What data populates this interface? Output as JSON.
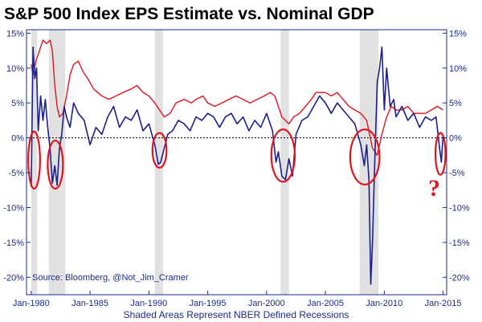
{
  "chart_data": {
    "type": "line",
    "title": "S&P 500 Index EPS Estimate vs. Nominal GDP",
    "xlabel": "Shaded Areas Represent NBER Defined Recessions",
    "source": "Source: Bloomberg, @Not_Jim_Cramer",
    "annotation": "?",
    "xlim": [
      1979.6,
      2015.3
    ],
    "ylim": [
      -22.5,
      15.5
    ],
    "x_ticks": [
      {
        "value": 1980,
        "label": "Jan-1980"
      },
      {
        "value": 1985,
        "label": "Jan-1985"
      },
      {
        "value": 1990,
        "label": "Jan-1990"
      },
      {
        "value": 1995,
        "label": "Jan-1995"
      },
      {
        "value": 2000,
        "label": "Jan-2000"
      },
      {
        "value": 2005,
        "label": "Jan-2005"
      },
      {
        "value": 2010,
        "label": "Jan-2010"
      },
      {
        "value": 2015,
        "label": "Jan-2015"
      }
    ],
    "y_ticks": [
      {
        "value": 15,
        "label": "15%"
      },
      {
        "value": 10,
        "label": "10%"
      },
      {
        "value": 5,
        "label": "5%"
      },
      {
        "value": 0,
        "label": "0%"
      },
      {
        "value": -5,
        "label": "-5%"
      },
      {
        "value": -10,
        "label": "-10%"
      },
      {
        "value": -15,
        "label": "-15%"
      },
      {
        "value": -20,
        "label": "-20%"
      }
    ],
    "recessions": [
      [
        1980.0,
        1980.5
      ],
      [
        1981.5,
        1982.9
      ],
      [
        1990.5,
        1991.2
      ],
      [
        2001.2,
        2001.9
      ],
      [
        2007.9,
        2009.5
      ]
    ],
    "highlighted_periods": [
      {
        "x": [
          1979.75,
          1980.75
        ],
        "y": [
          -7.3,
          0.9
        ]
      },
      {
        "x": [
          1981.4,
          1982.7
        ],
        "y": [
          -7.3,
          -0.4
        ]
      },
      {
        "x": [
          1990.3,
          1991.5
        ],
        "y": [
          -4.3,
          0.7
        ]
      },
      {
        "x": [
          2000.4,
          2002.4
        ],
        "y": [
          -6.3,
          1.2
        ]
      },
      {
        "x": [
          2007.1,
          2009.6
        ],
        "y": [
          -6.7,
          1.2
        ]
      },
      {
        "x": [
          2014.35,
          2015.2
        ],
        "y": [
          -5.3,
          0.7
        ]
      }
    ],
    "colors": {
      "eps": "#1c1f8c",
      "gdp": "#e0141e",
      "recession": "#c8c8c8",
      "axis": "#1a2a8a",
      "highlight": "#e0141e"
    },
    "series": [
      {
        "key": "eps",
        "x": [
          1980.0,
          1980.15,
          1980.3,
          1980.45,
          1980.6,
          1980.8,
          1981.0,
          1981.2,
          1981.4,
          1981.6,
          1981.8,
          1982.0,
          1982.2,
          1982.4,
          1982.6,
          1982.8,
          1983.0,
          1983.3,
          1983.6,
          1984.0,
          1984.5,
          1985.0,
          1985.5,
          1986.0,
          1986.5,
          1987.0,
          1987.5,
          1988.0,
          1988.5,
          1989.0,
          1989.5,
          1990.0,
          1990.5,
          1990.8,
          1991.0,
          1991.3,
          1991.6,
          1992.0,
          1992.5,
          1993.0,
          1993.5,
          1994.0,
          1994.5,
          1995.0,
          1995.5,
          1996.0,
          1996.5,
          1997.0,
          1997.5,
          1998.0,
          1998.5,
          1999.0,
          1999.5,
          2000.0,
          2000.5,
          2000.8,
          2001.0,
          2001.3,
          2001.6,
          2001.9,
          2002.2,
          2002.5,
          2003.0,
          2003.5,
          2004.0,
          2004.5,
          2005.0,
          2005.5,
          2006.0,
          2006.5,
          2007.0,
          2007.5,
          2008.0,
          2008.3,
          2008.5,
          2008.7,
          2008.85,
          2009.0,
          2009.2,
          2009.4,
          2009.6,
          2009.8,
          2010.0,
          2010.2,
          2010.5,
          2010.8,
          2011.0,
          2011.5,
          2012.0,
          2012.5,
          2013.0,
          2013.5,
          2014.0,
          2014.4,
          2014.7,
          2014.85,
          2015.0
        ],
        "y": [
          -7.0,
          13.0,
          8.5,
          10.0,
          1.0,
          6.0,
          2.5,
          5.5,
          1.5,
          -1.5,
          -6.5,
          -4.0,
          -6.8,
          -1.5,
          0.5,
          4.5,
          3.0,
          1.5,
          5.0,
          3.5,
          2.5,
          -1.0,
          1.5,
          0.5,
          3.0,
          4.5,
          1.5,
          3.0,
          2.5,
          4.0,
          1.0,
          2.0,
          -1.0,
          -3.8,
          -3.5,
          -1.5,
          0.5,
          1.0,
          2.5,
          2.0,
          1.0,
          3.0,
          2.5,
          3.5,
          3.0,
          1.5,
          3.0,
          3.5,
          2.0,
          3.0,
          1.0,
          2.5,
          1.5,
          3.5,
          1.0,
          -3.5,
          -2.0,
          -5.5,
          -6.0,
          -3.0,
          -5.5,
          0.5,
          2.5,
          3.0,
          4.5,
          6.0,
          5.0,
          3.5,
          5.0,
          4.0,
          3.0,
          2.0,
          -1.0,
          -4.0,
          -1.0,
          -6.0,
          -21.0,
          -15.0,
          -3.0,
          8.0,
          10.0,
          13.0,
          4.0,
          10.0,
          4.5,
          5.5,
          3.0,
          4.5,
          2.5,
          3.5,
          1.5,
          3.0,
          2.5,
          3.0,
          -1.5,
          -3.5,
          0.5
        ]
      },
      {
        "key": "gdp",
        "x": [
          1980.0,
          1980.15,
          1980.4,
          1980.7,
          1981.0,
          1981.3,
          1981.6,
          1981.8,
          1982.0,
          1982.2,
          1982.4,
          1982.7,
          1983.0,
          1983.3,
          1983.6,
          1984.0,
          1984.4,
          1984.8,
          1985.3,
          1986.0,
          1986.6,
          1987.2,
          1987.8,
          1988.5,
          1989.0,
          1989.5,
          1990.0,
          1990.5,
          1990.9,
          1991.3,
          1991.8,
          1992.3,
          1993.0,
          1993.6,
          1994.0,
          1994.6,
          1995.0,
          1995.6,
          1996.2,
          1996.8,
          1997.4,
          1998.0,
          1998.6,
          1999.2,
          1999.8,
          2000.3,
          2000.7,
          2001.0,
          2001.3,
          2001.6,
          2001.9,
          2002.3,
          2002.8,
          2003.3,
          2003.8,
          2004.2,
          2004.6,
          2005.0,
          2005.5,
          2006.0,
          2006.5,
          2007.0,
          2007.5,
          2008.0,
          2008.5,
          2009.0,
          2009.4,
          2009.8,
          2010.2,
          2010.6,
          2011.0,
          2011.5,
          2012.0,
          2012.5,
          2013.0,
          2013.5,
          2014.0,
          2014.5,
          2015.0
        ],
        "y": [
          10.5,
          9.0,
          11.0,
          12.5,
          14.0,
          13.5,
          14.0,
          12.5,
          7.5,
          4.5,
          3.0,
          3.5,
          6.0,
          9.0,
          10.5,
          11.0,
          9.5,
          8.5,
          7.0,
          6.0,
          5.5,
          6.0,
          6.5,
          7.0,
          7.5,
          6.5,
          6.0,
          5.0,
          4.0,
          3.0,
          3.5,
          5.0,
          5.5,
          5.0,
          5.5,
          6.0,
          5.0,
          4.5,
          5.0,
          5.5,
          6.0,
          5.5,
          5.0,
          5.5,
          6.0,
          6.5,
          6.0,
          4.5,
          3.0,
          2.5,
          2.0,
          3.0,
          3.5,
          4.5,
          5.5,
          6.5,
          6.5,
          6.5,
          6.0,
          6.5,
          5.5,
          4.5,
          4.0,
          3.5,
          2.5,
          -1.5,
          -2.5,
          0.5,
          3.0,
          4.5,
          4.0,
          4.0,
          4.5,
          3.5,
          3.5,
          3.5,
          4.0,
          4.5,
          4.0
        ]
      }
    ]
  }
}
